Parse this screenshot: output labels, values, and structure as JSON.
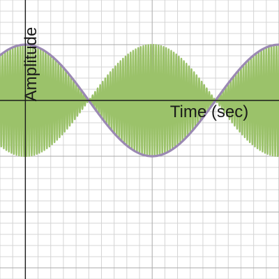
{
  "chart_data": {
    "type": "line",
    "title": "",
    "xlabel": "Time (sec)",
    "ylabel": "Amplitude",
    "xlim": [
      -0.1,
      1.0
    ],
    "ylim": [
      -1.6,
      0.9
    ],
    "grid": true,
    "minor_grid_step": [
      0.05,
      0.1
    ],
    "major_grid_step": [
      0.5,
      0.5
    ],
    "series": [
      {
        "kind": "modulated-carrier",
        "color": "#9bc26a",
        "envelope_amplitude": 0.5,
        "carrier_cycles_per_unit": 100,
        "envelope_period": 1.0,
        "x_range": [
          -0.1,
          1.0
        ]
      },
      {
        "kind": "envelope",
        "color": "#9b89b3",
        "amplitude": 0.5,
        "period": 1.0,
        "x_range": [
          -0.1,
          1.0
        ]
      }
    ]
  },
  "colors": {
    "grid_minor": "#d4d4d4",
    "grid_major": "#a9a9a9",
    "axis": "#1a1a1a",
    "background": "#ffffff"
  }
}
